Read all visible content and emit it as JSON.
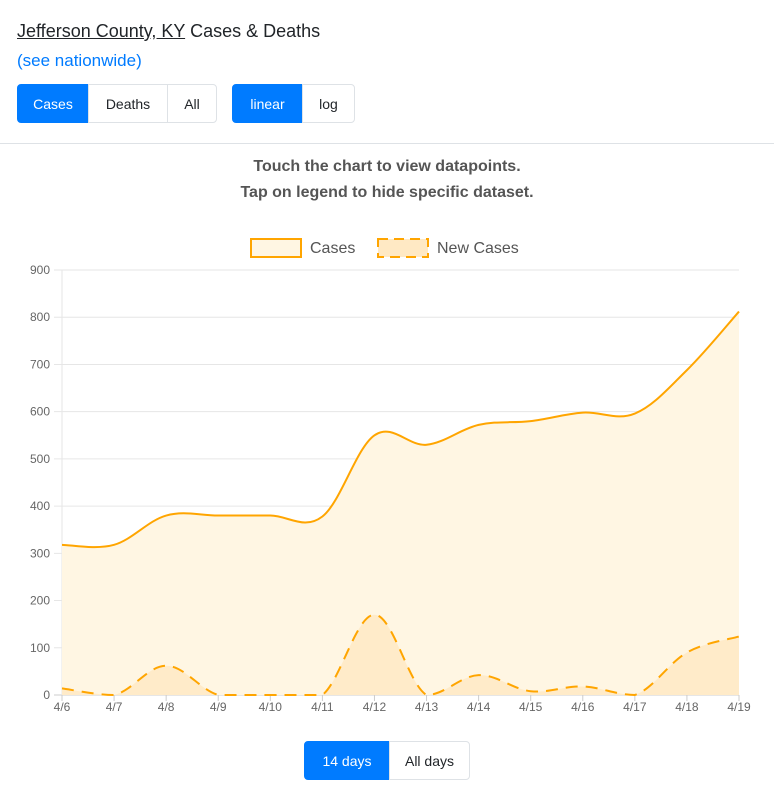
{
  "header": {
    "location": "Jefferson County, KY",
    "title_suffix": " Cases & Deaths",
    "nationwide_link": "(see nationwide)"
  },
  "metric_buttons": [
    "Cases",
    "Deaths",
    "All"
  ],
  "metric_selected": "Cases",
  "scale_buttons": [
    "linear",
    "log"
  ],
  "scale_selected": "linear",
  "hints": {
    "line1": "Touch the chart to view datapoints.",
    "line2": "Tap on legend to hide specific dataset."
  },
  "range_buttons": [
    "14 days",
    "All days"
  ],
  "range_selected": "14 days",
  "chart_data": {
    "type": "line",
    "x": [
      "4/6",
      "4/7",
      "4/8",
      "4/9",
      "4/10",
      "4/11",
      "4/12",
      "4/13",
      "4/14",
      "4/15",
      "4/16",
      "4/17",
      "4/18",
      "4/19"
    ],
    "series": [
      {
        "name": "Cases",
        "values": [
          318,
          318,
          380,
          380,
          380,
          378,
          550,
          530,
          572,
          580,
          598,
          596,
          688,
          812
        ],
        "color": "#ffa500",
        "fill": "#fff6e3",
        "dash": false
      },
      {
        "name": "New Cases",
        "values": [
          14,
          0,
          62,
          0,
          0,
          0,
          170,
          0,
          42,
          8,
          18,
          0,
          90,
          124
        ],
        "color": "#ffa500",
        "fill": "#ffe9c4",
        "dash": true
      }
    ],
    "ylim": [
      0,
      900
    ],
    "yticks": [
      0,
      100,
      200,
      300,
      400,
      500,
      600,
      700,
      800,
      900
    ],
    "grid": true,
    "legend": "top-center"
  }
}
